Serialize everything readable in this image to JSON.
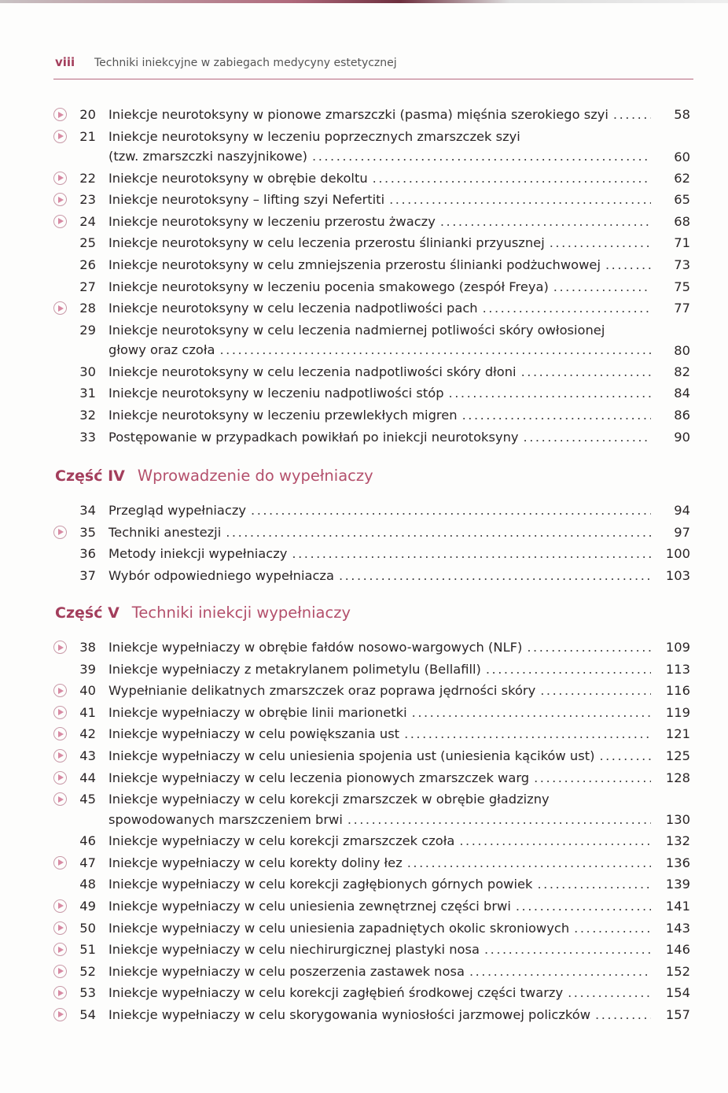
{
  "header": {
    "page_number": "viii",
    "book_title": "Techniki iniekcyjne w zabiegach medycyny estetycznej"
  },
  "colors": {
    "accent": "#a33e5c",
    "text": "#2a2526"
  },
  "icon": "play-circle-icon",
  "groups": [
    {
      "part_label": "",
      "part_title": "",
      "entries": [
        {
          "num": "20",
          "video": true,
          "lines": [
            "Iniekcje neurotoksyny w pionowe zmarszczki (pasma) mięśnia szerokiego szyi"
          ],
          "page": "58"
        },
        {
          "num": "21",
          "video": true,
          "lines": [
            "Iniekcje neurotoksyny w leczeniu poprzecznych zmarszczek szyi",
            "(tzw. zmarszczki naszyjnikowe)"
          ],
          "page": "60"
        },
        {
          "num": "22",
          "video": true,
          "lines": [
            "Iniekcje neurotoksyny w obrębie dekoltu"
          ],
          "page": "62"
        },
        {
          "num": "23",
          "video": true,
          "lines": [
            "Iniekcje neurotoksyny – lifting szyi Nefertiti"
          ],
          "page": "65"
        },
        {
          "num": "24",
          "video": true,
          "lines": [
            "Iniekcje neurotoksyny w leczeniu przerostu żwaczy"
          ],
          "page": "68"
        },
        {
          "num": "25",
          "video": false,
          "lines": [
            "Iniekcje neurotoksyny w celu leczenia przerostu ślinianki przyusznej"
          ],
          "page": "71"
        },
        {
          "num": "26",
          "video": false,
          "lines": [
            "Iniekcje neurotoksyny w celu zmniejszenia przerostu ślinianki podżuchwowej"
          ],
          "page": "73"
        },
        {
          "num": "27",
          "video": false,
          "lines": [
            "Iniekcje neurotoksyny w leczeniu pocenia smakowego (zespół Freya)"
          ],
          "page": "75"
        },
        {
          "num": "28",
          "video": true,
          "lines": [
            "Iniekcje neurotoksyny w celu leczenia nadpotliwości pach"
          ],
          "page": "77"
        },
        {
          "num": "29",
          "video": false,
          "lines": [
            "Iniekcje neurotoksyny w celu leczenia nadmiernej potliwości skóry owłosionej",
            "głowy oraz czoła"
          ],
          "page": "80"
        },
        {
          "num": "30",
          "video": false,
          "lines": [
            "Iniekcje neurotoksyny w celu leczenia nadpotliwości skóry dłoni"
          ],
          "page": "82"
        },
        {
          "num": "31",
          "video": false,
          "lines": [
            "Iniekcje neurotoksyny w leczeniu nadpotliwości stóp"
          ],
          "page": "84"
        },
        {
          "num": "32",
          "video": false,
          "lines": [
            "Iniekcje neurotoksyny w leczeniu przewlekłych migren"
          ],
          "page": "86"
        },
        {
          "num": "33",
          "video": false,
          "lines": [
            "Postępowanie w przypadkach powikłań po iniekcji neurotoksyny"
          ],
          "page": "90"
        }
      ]
    },
    {
      "part_label": "Część IV",
      "part_title": "Wprowadzenie do wypełniaczy",
      "entries": [
        {
          "num": "34",
          "video": false,
          "lines": [
            "Przegląd wypełniaczy"
          ],
          "page": "94"
        },
        {
          "num": "35",
          "video": true,
          "lines": [
            "Techniki anestezji"
          ],
          "page": "97"
        },
        {
          "num": "36",
          "video": false,
          "lines": [
            "Metody iniekcji wypełniaczy"
          ],
          "page": "100"
        },
        {
          "num": "37",
          "video": false,
          "lines": [
            "Wybór odpowiedniego wypełniacza"
          ],
          "page": "103"
        }
      ]
    },
    {
      "part_label": "Część V",
      "part_title": "Techniki iniekcji wypełniaczy",
      "entries": [
        {
          "num": "38",
          "video": true,
          "lines": [
            "Iniekcje wypełniaczy w obrębie fałdów nosowo-wargowych (NLF)"
          ],
          "page": "109"
        },
        {
          "num": "39",
          "video": false,
          "lines": [
            "Iniekcje wypełniaczy z metakrylanem polimetylu (Bellafill)"
          ],
          "page": "113"
        },
        {
          "num": "40",
          "video": true,
          "lines": [
            "Wypełnianie delikatnych zmarszczek oraz poprawa jędrności skóry"
          ],
          "page": "116"
        },
        {
          "num": "41",
          "video": true,
          "lines": [
            "Iniekcje wypełniaczy w obrębie linii marionetki"
          ],
          "page": "119"
        },
        {
          "num": "42",
          "video": true,
          "lines": [
            "Iniekcje wypełniaczy w celu powiększania ust"
          ],
          "page": "121"
        },
        {
          "num": "43",
          "video": true,
          "lines": [
            "Iniekcje wypełniaczy w celu uniesienia spojenia ust (uniesienia kącików ust)"
          ],
          "page": "125"
        },
        {
          "num": "44",
          "video": true,
          "lines": [
            "Iniekcje wypełniaczy w celu leczenia pionowych zmarszczek warg"
          ],
          "page": "128"
        },
        {
          "num": "45",
          "video": true,
          "lines": [
            "Iniekcje wypełniaczy w celu korekcji zmarszczek w obrębie gładzizny",
            "spowodowanych marszczeniem brwi"
          ],
          "page": "130"
        },
        {
          "num": "46",
          "video": false,
          "lines": [
            "Iniekcje wypełniaczy w celu korekcji zmarszczek czoła"
          ],
          "page": "132"
        },
        {
          "num": "47",
          "video": true,
          "lines": [
            "Iniekcje wypełniaczy w celu korekty doliny łez"
          ],
          "page": "136"
        },
        {
          "num": "48",
          "video": false,
          "lines": [
            "Iniekcje wypełniaczy w celu korekcji zagłębionych górnych powiek"
          ],
          "page": "139"
        },
        {
          "num": "49",
          "video": true,
          "lines": [
            "Iniekcje wypełniaczy w celu uniesienia zewnętrznej części brwi"
          ],
          "page": "141"
        },
        {
          "num": "50",
          "video": true,
          "lines": [
            "Iniekcje wypełniaczy w celu uniesienia zapadniętych okolic skroniowych"
          ],
          "page": "143"
        },
        {
          "num": "51",
          "video": true,
          "lines": [
            "Iniekcje wypełniaczy w celu niechirurgicznej plastyki nosa"
          ],
          "page": "146"
        },
        {
          "num": "52",
          "video": true,
          "lines": [
            "Iniekcje wypełniaczy w celu poszerzenia zastawek nosa"
          ],
          "page": "152"
        },
        {
          "num": "53",
          "video": true,
          "lines": [
            "Iniekcje wypełniaczy w celu korekcji zagłębień środkowej części twarzy"
          ],
          "page": "154"
        },
        {
          "num": "54",
          "video": true,
          "lines": [
            "Iniekcje wypełniaczy w celu skorygowania wyniosłości jarzmowej policzków"
          ],
          "page": "157"
        }
      ]
    }
  ]
}
